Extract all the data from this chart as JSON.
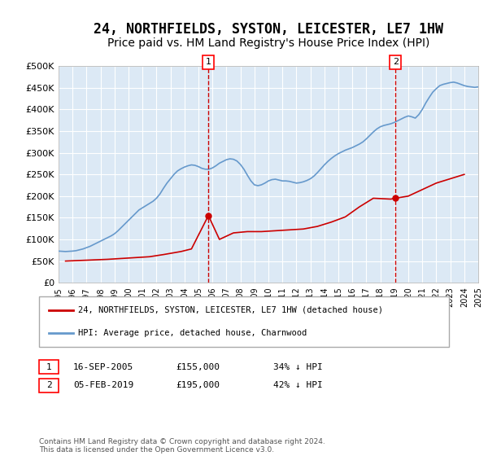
{
  "title": "24, NORTHFIELDS, SYSTON, LEICESTER, LE7 1HW",
  "subtitle": "Price paid vs. HM Land Registry's House Price Index (HPI)",
  "title_fontsize": 12,
  "subtitle_fontsize": 10,
  "xlabel": "",
  "ylabel": "",
  "ylim": [
    0,
    500000
  ],
  "yticks": [
    0,
    50000,
    100000,
    150000,
    200000,
    250000,
    300000,
    350000,
    400000,
    450000,
    500000
  ],
  "ytick_labels": [
    "£0",
    "£50K",
    "£100K",
    "£150K",
    "£200K",
    "£250K",
    "£300K",
    "£350K",
    "£400K",
    "£450K",
    "£500K"
  ],
  "xlim_year": [
    1995,
    2025
  ],
  "background_color": "#dce9f5",
  "plot_bg": "#dce9f5",
  "grid_color": "#ffffff",
  "hpi_color": "#6699cc",
  "price_color": "#cc0000",
  "vline_color": "#cc0000",
  "sale1_year": 2005.71,
  "sale1_price": 155000,
  "sale1_label": "1",
  "sale1_date": "16-SEP-2005",
  "sale1_pct": "34% ↓ HPI",
  "sale2_year": 2019.09,
  "sale2_price": 195000,
  "sale2_label": "2",
  "sale2_date": "05-FEB-2019",
  "sale2_pct": "42% ↓ HPI",
  "legend_line1": "24, NORTHFIELDS, SYSTON, LEICESTER, LE7 1HW (detached house)",
  "legend_line2": "HPI: Average price, detached house, Charnwood",
  "footer": "Contains HM Land Registry data © Crown copyright and database right 2024.\nThis data is licensed under the Open Government Licence v3.0.",
  "hpi_years": [
    1995.0,
    1995.25,
    1995.5,
    1995.75,
    1996.0,
    1996.25,
    1996.5,
    1996.75,
    1997.0,
    1997.25,
    1997.5,
    1997.75,
    1998.0,
    1998.25,
    1998.5,
    1998.75,
    1999.0,
    1999.25,
    1999.5,
    1999.75,
    2000.0,
    2000.25,
    2000.5,
    2000.75,
    2001.0,
    2001.25,
    2001.5,
    2001.75,
    2002.0,
    2002.25,
    2002.5,
    2002.75,
    2003.0,
    2003.25,
    2003.5,
    2003.75,
    2004.0,
    2004.25,
    2004.5,
    2004.75,
    2005.0,
    2005.25,
    2005.5,
    2005.75,
    2006.0,
    2006.25,
    2006.5,
    2006.75,
    2007.0,
    2007.25,
    2007.5,
    2007.75,
    2008.0,
    2008.25,
    2008.5,
    2008.75,
    2009.0,
    2009.25,
    2009.5,
    2009.75,
    2010.0,
    2010.25,
    2010.5,
    2010.75,
    2011.0,
    2011.25,
    2011.5,
    2011.75,
    2012.0,
    2012.25,
    2012.5,
    2012.75,
    2013.0,
    2013.25,
    2013.5,
    2013.75,
    2014.0,
    2014.25,
    2014.5,
    2014.75,
    2015.0,
    2015.25,
    2015.5,
    2015.75,
    2016.0,
    2016.25,
    2016.5,
    2016.75,
    2017.0,
    2017.25,
    2017.5,
    2017.75,
    2018.0,
    2018.25,
    2018.5,
    2018.75,
    2019.0,
    2019.25,
    2019.5,
    2019.75,
    2020.0,
    2020.25,
    2020.5,
    2020.75,
    2021.0,
    2021.25,
    2021.5,
    2021.75,
    2022.0,
    2022.25,
    2022.5,
    2022.75,
    2023.0,
    2023.25,
    2023.5,
    2023.75,
    2024.0,
    2024.25,
    2024.5,
    2024.75,
    2025.0
  ],
  "hpi_values": [
    73000,
    72500,
    72000,
    72500,
    73000,
    74000,
    76000,
    78000,
    81000,
    84000,
    88000,
    92000,
    96000,
    100000,
    104000,
    108000,
    113000,
    120000,
    128000,
    136000,
    144000,
    152000,
    160000,
    168000,
    173000,
    178000,
    183000,
    188000,
    195000,
    205000,
    218000,
    230000,
    240000,
    250000,
    258000,
    263000,
    267000,
    270000,
    272000,
    271000,
    268000,
    264000,
    262000,
    262000,
    265000,
    270000,
    276000,
    280000,
    284000,
    286000,
    285000,
    281000,
    273000,
    262000,
    248000,
    235000,
    226000,
    224000,
    226000,
    230000,
    235000,
    238000,
    239000,
    237000,
    235000,
    235000,
    234000,
    232000,
    230000,
    231000,
    233000,
    236000,
    240000,
    246000,
    254000,
    263000,
    272000,
    280000,
    287000,
    293000,
    298000,
    302000,
    306000,
    309000,
    312000,
    316000,
    320000,
    325000,
    332000,
    340000,
    348000,
    355000,
    360000,
    363000,
    365000,
    367000,
    370000,
    374000,
    378000,
    382000,
    385000,
    383000,
    380000,
    388000,
    400000,
    415000,
    428000,
    440000,
    448000,
    455000,
    458000,
    460000,
    462000,
    463000,
    461000,
    458000,
    455000,
    453000,
    452000,
    451000,
    452000
  ],
  "price_years": [
    1995.5,
    1997.0,
    1998.5,
    2000.0,
    2001.5,
    2002.5,
    2003.75,
    2004.5,
    2005.71,
    2006.5,
    2007.5,
    2008.5,
    2009.5,
    2010.5,
    2011.5,
    2012.5,
    2013.5,
    2014.5,
    2015.5,
    2016.5,
    2017.5,
    2018.75,
    2019.09,
    2020.0,
    2021.0,
    2022.0,
    2023.0,
    2024.0
  ],
  "price_values": [
    50000,
    52000,
    54000,
    57000,
    60000,
    65000,
    72000,
    78000,
    155000,
    100000,
    115000,
    118000,
    118000,
    120000,
    122000,
    124000,
    130000,
    140000,
    152000,
    175000,
    195000,
    193000,
    195000,
    200000,
    215000,
    230000,
    240000,
    250000
  ]
}
